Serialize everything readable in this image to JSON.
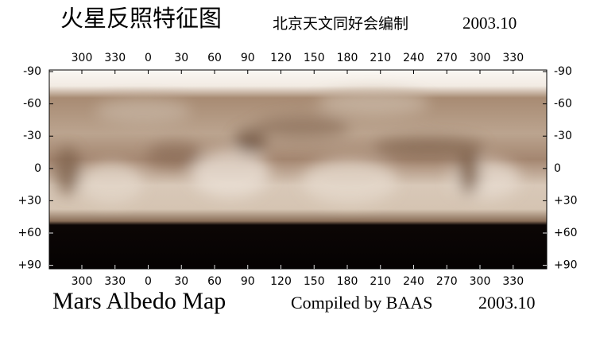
{
  "header": {
    "title": "火星反照特征图",
    "subtitle": "北京天文同好会编制",
    "date": "2003.10"
  },
  "longitude_labels": [
    "300",
    "330",
    "0",
    "30",
    "60",
    "90",
    "120",
    "150",
    "180",
    "210",
    "240",
    "270",
    "300",
    "330"
  ],
  "latitude_labels": [
    "-90",
    "-60",
    "-30",
    "0",
    "+30",
    "+60",
    "+90"
  ],
  "footer": {
    "title": "Mars Albedo Map",
    "credit": "Compiled by BAAS",
    "date": "2003.10"
  }
}
